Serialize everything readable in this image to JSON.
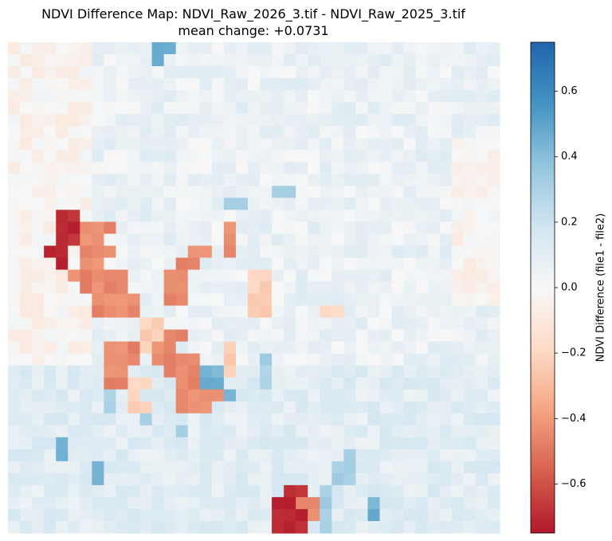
{
  "chart_data": {
    "type": "heatmap",
    "title": "NDVI Difference Map: NDVI_Raw_2026_3.tif - NDVI_Raw_2025_3.tif",
    "subtitle": "mean change: +0.0731",
    "grid": false,
    "grid_size": [
      41,
      41
    ],
    "colormap": "RdBu",
    "colorbar": {
      "label": "NDVI Difference (file1 - file2)",
      "range": [
        -0.75,
        0.75
      ],
      "ticks": [
        "0.6",
        "0.4",
        "0.2",
        "0.0",
        "−0.2",
        "−0.4",
        "−0.6"
      ],
      "tick_values": [
        0.6,
        0.4,
        0.2,
        0.0,
        -0.2,
        -0.4,
        -0.6
      ],
      "placement": "right"
    },
    "regions": [
      {
        "kind": "base",
        "rows": [
          0,
          27
        ],
        "cols": [
          0,
          6
        ],
        "value": -0.03
      },
      {
        "kind": "base",
        "rows": [
          0,
          27
        ],
        "cols": [
          7,
          40
        ],
        "value": 0.06
      },
      {
        "kind": "base",
        "rows": [
          27,
          41
        ],
        "cols": [
          0,
          40
        ],
        "value": 0.11
      },
      {
        "kind": "base",
        "rows": [
          8,
          21
        ],
        "cols": [
          37,
          40
        ],
        "value": -0.03
      },
      {
        "kind": "patch",
        "cells": [
          [
            14,
            4
          ],
          [
            14,
            5
          ],
          [
            15,
            4
          ],
          [
            15,
            5
          ],
          [
            16,
            4
          ],
          [
            16,
            5
          ],
          [
            17,
            3
          ],
          [
            17,
            4
          ],
          [
            18,
            4
          ],
          [
            37,
            23
          ],
          [
            37,
            24
          ],
          [
            38,
            22
          ],
          [
            38,
            23
          ],
          [
            38,
            24
          ],
          [
            38,
            25
          ],
          [
            39,
            22
          ],
          [
            39,
            23
          ],
          [
            39,
            24
          ],
          [
            39,
            25
          ],
          [
            40,
            22
          ],
          [
            40,
            23
          ],
          [
            40,
            24
          ]
        ],
        "value": -0.7
      },
      {
        "kind": "patch",
        "cells": [
          [
            15,
            6
          ],
          [
            15,
            7
          ],
          [
            15,
            8
          ],
          [
            16,
            6
          ],
          [
            16,
            7
          ],
          [
            17,
            6
          ],
          [
            17,
            7
          ],
          [
            17,
            8
          ],
          [
            18,
            6
          ],
          [
            18,
            7
          ],
          [
            19,
            5
          ],
          [
            19,
            6
          ],
          [
            19,
            7
          ],
          [
            19,
            8
          ],
          [
            19,
            9
          ],
          [
            20,
            6
          ],
          [
            20,
            7
          ],
          [
            20,
            8
          ],
          [
            20,
            9
          ],
          [
            21,
            7
          ],
          [
            21,
            8
          ],
          [
            21,
            9
          ],
          [
            21,
            10
          ],
          [
            22,
            7
          ],
          [
            22,
            8
          ],
          [
            22,
            9
          ],
          [
            22,
            10
          ],
          [
            25,
            8
          ],
          [
            25,
            9
          ],
          [
            25,
            10
          ],
          [
            26,
            8
          ],
          [
            26,
            9
          ],
          [
            26,
            10
          ],
          [
            27,
            8
          ],
          [
            27,
            9
          ],
          [
            28,
            8
          ],
          [
            28,
            9
          ],
          [
            17,
            15
          ],
          [
            17,
            16
          ],
          [
            18,
            14
          ],
          [
            18,
            15
          ],
          [
            19,
            13
          ],
          [
            19,
            14
          ],
          [
            20,
            13
          ],
          [
            20,
            14
          ],
          [
            21,
            13
          ],
          [
            21,
            14
          ],
          [
            24,
            13
          ],
          [
            24,
            14
          ],
          [
            25,
            12
          ],
          [
            25,
            13
          ],
          [
            26,
            12
          ],
          [
            26,
            13
          ],
          [
            26,
            14
          ],
          [
            26,
            15
          ],
          [
            27,
            13
          ],
          [
            27,
            14
          ],
          [
            27,
            15
          ],
          [
            27,
            16
          ],
          [
            28,
            14
          ],
          [
            28,
            15
          ],
          [
            28,
            16
          ],
          [
            28,
            17
          ],
          [
            29,
            14
          ],
          [
            29,
            15
          ],
          [
            29,
            16
          ],
          [
            29,
            17
          ],
          [
            30,
            14
          ],
          [
            30,
            15
          ],
          [
            30,
            16
          ],
          [
            38,
            24
          ],
          [
            38,
            25
          ],
          [
            39,
            25
          ],
          [
            39,
            26
          ],
          [
            15,
            18
          ],
          [
            16,
            18
          ],
          [
            17,
            18
          ]
        ],
        "value": -0.45
      },
      {
        "kind": "patch",
        "cells": [
          [
            19,
            20
          ],
          [
            19,
            21
          ],
          [
            20,
            20
          ],
          [
            20,
            21
          ],
          [
            21,
            20
          ],
          [
            21,
            21
          ],
          [
            22,
            20
          ],
          [
            22,
            21
          ],
          [
            23,
            11
          ],
          [
            23,
            12
          ],
          [
            24,
            11
          ],
          [
            24,
            12
          ],
          [
            25,
            11
          ],
          [
            28,
            10
          ],
          [
            28,
            11
          ],
          [
            29,
            10
          ],
          [
            30,
            10
          ],
          [
            30,
            11
          ],
          [
            22,
            26
          ],
          [
            22,
            27
          ],
          [
            25,
            18
          ],
          [
            26,
            18
          ],
          [
            27,
            18
          ]
        ],
        "value": -0.22
      },
      {
        "kind": "patch",
        "cells": [
          [
            12,
            22
          ],
          [
            12,
            23
          ],
          [
            13,
            18
          ],
          [
            13,
            19
          ],
          [
            26,
            21
          ],
          [
            27,
            21
          ],
          [
            28,
            21
          ],
          [
            29,
            8
          ],
          [
            30,
            8
          ],
          [
            31,
            11
          ],
          [
            32,
            14
          ],
          [
            35,
            27
          ],
          [
            36,
            27
          ],
          [
            37,
            26
          ],
          [
            38,
            26
          ],
          [
            39,
            26
          ],
          [
            40,
            26
          ],
          [
            34,
            28
          ],
          [
            35,
            28
          ],
          [
            36,
            28
          ]
        ],
        "value": 0.32
      },
      {
        "kind": "patch",
        "cells": [
          [
            0,
            12
          ],
          [
            0,
            13
          ],
          [
            1,
            12
          ],
          [
            27,
            16
          ],
          [
            27,
            17
          ],
          [
            28,
            16
          ],
          [
            28,
            17
          ],
          [
            29,
            18
          ],
          [
            35,
            7
          ],
          [
            36,
            7
          ],
          [
            38,
            30
          ],
          [
            39,
            30
          ],
          [
            33,
            4
          ],
          [
            34,
            4
          ]
        ],
        "value": 0.45
      }
    ],
    "noise_amplitude": 0.06,
    "noise_seed": 7
  },
  "colors": {
    "red_end": "#b2182b",
    "white_mid": "#f7f7f7",
    "blue_end": "#2166ac",
    "axis": "#000000"
  }
}
